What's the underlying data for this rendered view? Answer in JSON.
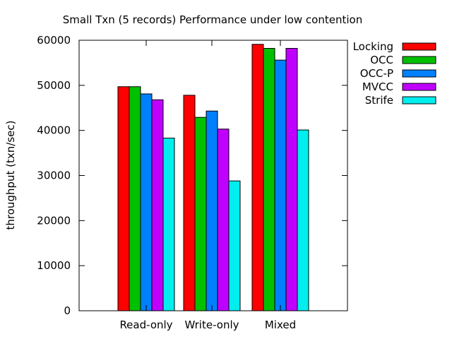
{
  "chart_data": {
    "type": "bar",
    "title": "Small Txn (5 records) Performance under low contention",
    "xlabel": "",
    "ylabel": "throughput (txn/sec)",
    "ylim": [
      0,
      60000
    ],
    "yticks": [
      "0",
      "10000",
      "20000",
      "30000",
      "40000",
      "50000",
      "60000"
    ],
    "categories": [
      "Read-only",
      "Write-only",
      "Mixed"
    ],
    "legend_position": "top-right",
    "grid": false,
    "series": [
      {
        "name": "Locking",
        "color": "#ff0000",
        "values": [
          49700,
          47800,
          59100
        ]
      },
      {
        "name": "OCC",
        "color": "#00c000",
        "values": [
          49700,
          42900,
          58200
        ]
      },
      {
        "name": "OCC-P",
        "color": "#0080ff",
        "values": [
          48100,
          44300,
          55600
        ]
      },
      {
        "name": "MVCC",
        "color": "#c000ff",
        "values": [
          46800,
          40300,
          58200
        ]
      },
      {
        "name": "Strife",
        "color": "#00eeee",
        "values": [
          38300,
          28800,
          40100
        ]
      }
    ]
  }
}
